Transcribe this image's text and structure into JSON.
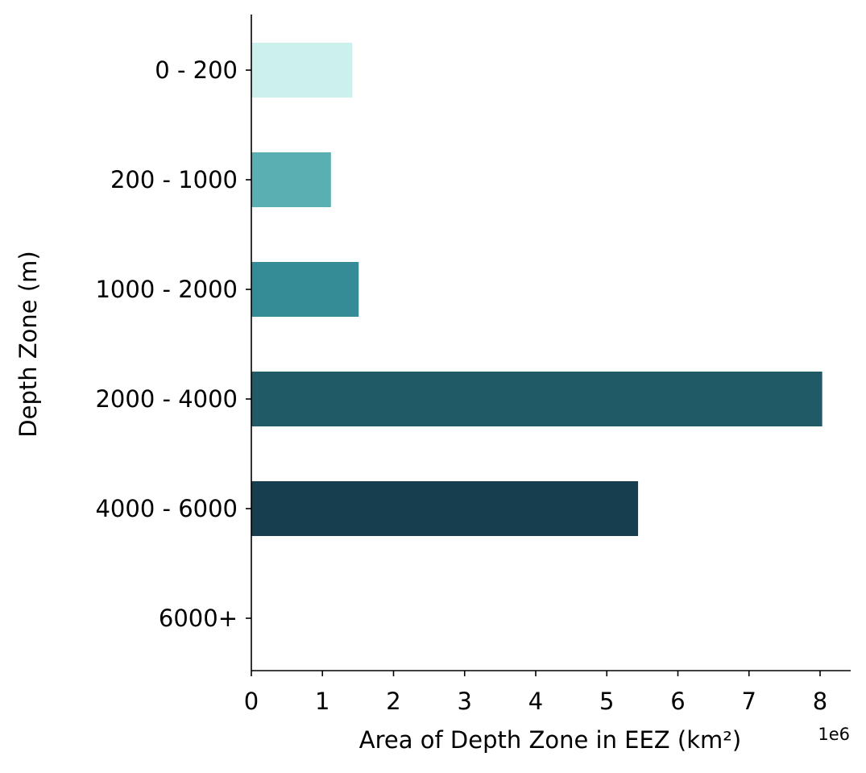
{
  "chart_data": {
    "type": "bar",
    "orientation": "horizontal",
    "title": "",
    "xlabel": "Area of Depth Zone in EEZ (km²)",
    "ylabel": "Depth Zone (m)",
    "x_scale_label": "1e6",
    "xlim": [
      0,
      8.43
    ],
    "x_ticks": [
      "0",
      "1",
      "2",
      "3",
      "4",
      "5",
      "6",
      "7",
      "8"
    ],
    "grid": false,
    "legend": "none",
    "categories": [
      "0 - 200",
      "200 - 1000",
      "1000 - 2000",
      "2000 - 4000",
      "4000 - 6000",
      "6000+"
    ],
    "values": [
      1.42,
      1.12,
      1.51,
      8.03,
      5.44,
      0
    ],
    "colors": [
      "#ccf0ec",
      "#5aafb3",
      "#358c96",
      "#205a66",
      "#173e4e",
      "#0e2a38"
    ]
  }
}
